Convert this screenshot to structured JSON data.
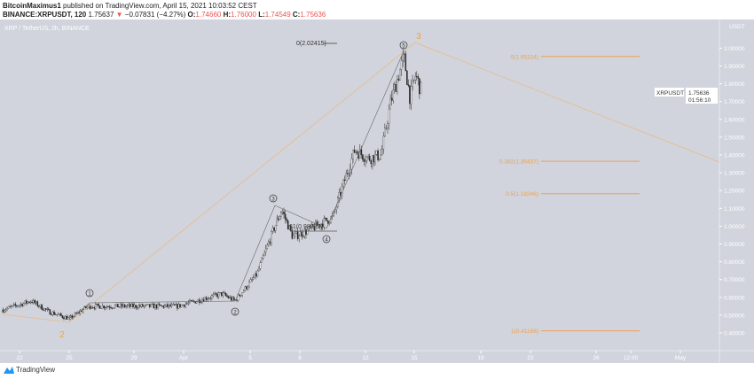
{
  "header": {
    "author": "BitcoinMaximus1",
    "published": "published on TradingView.com, April 15, 2021 10:03:52 CEST",
    "ticker": "BINANCE:XRPUSDT, 120",
    "last": "1.75637",
    "change": "−0.07831 (−4.27%)",
    "o_label": "O:",
    "o": "1.74660",
    "h_label": "H:",
    "h": "1.76000",
    "l_label": "L:",
    "l": "1.74549",
    "c_label": "C:",
    "c": "1.75636"
  },
  "symbol_title": "XRP / TetherUS, 2h, BINANCE",
  "price_axis": {
    "unit": "USDT",
    "labels": [
      "2.00000",
      "1.90000",
      "1.80000",
      "1.70000",
      "1.60000",
      "1.50000",
      "1.40000",
      "1.30000",
      "1.20000",
      "1.10000",
      "1.00000",
      "0.90000",
      "0.80000",
      "0.70000",
      "0.60000",
      "0.50000",
      "0.40000"
    ],
    "last_tag": {
      "symbol": "XRPUSDT",
      "price": "1.75636",
      "countdown": "01:56:10"
    }
  },
  "time_axis": {
    "labels": [
      "22",
      "25",
      "29",
      "Apr",
      "5",
      "8",
      "12",
      "15",
      "19",
      "22",
      "26",
      "12:00",
      "May"
    ]
  },
  "annotations": {
    "fib_top": "0(2.02415)",
    "fib_mid": "61(0.98832)",
    "fib_levels": [
      {
        "label": "0(1.95324)",
        "price": 1.95324
      },
      {
        "label": "0.382(1.36437)",
        "price": 1.36437
      },
      {
        "label": "0.5(1.18246)",
        "price": 1.18246
      },
      {
        "label": "1(0.41168)",
        "price": 0.41168
      }
    ],
    "waves": [
      "1",
      "2",
      "3",
      "4",
      "5"
    ],
    "big_waves": [
      "2",
      "3"
    ]
  },
  "colors": {
    "background": "#d1d4dc",
    "fib": "#f0a050",
    "wave_orange": "#f7a234",
    "down": "#ef5350",
    "candle": "#222"
  },
  "chart_data": {
    "type": "candlestick",
    "ylim": [
      0.35,
      2.1
    ],
    "y_scale": "linear",
    "price_path": [
      [
        "2021-03-21T00:00",
        0.53
      ],
      [
        "2021-03-22T17:00",
        0.58
      ],
      [
        "2021-03-23T18:00",
        0.52
      ],
      [
        "2021-03-25T00:00",
        0.48
      ],
      [
        "2021-03-26T04:00",
        0.55
      ],
      [
        "2021-03-31T13:00",
        0.55
      ],
      [
        "2021-04-03T05:00",
        0.62
      ],
      [
        "2021-04-04T00:00",
        0.58
      ],
      [
        "2021-04-05T08:00",
        0.73
      ],
      [
        "2021-04-06T10:00",
        1.0
      ],
      [
        "2021-04-06T20:00",
        1.09
      ],
      [
        "2021-04-07T12:00",
        0.94
      ],
      [
        "2021-04-08T07:00",
        0.97
      ],
      [
        "2021-04-09T22:00",
        1.05
      ],
      [
        "2021-04-10T17:00",
        1.28
      ],
      [
        "2021-04-11T06:00",
        1.43
      ],
      [
        "2021-04-12T01:00",
        1.38
      ],
      [
        "2021-04-12T20:00",
        1.4
      ],
      [
        "2021-04-13T10:00",
        1.7
      ],
      [
        "2021-04-14T05:00",
        1.95
      ],
      [
        "2021-04-14T14:00",
        1.72
      ],
      [
        "2021-04-14T22:00",
        1.85
      ],
      [
        "2021-04-15T06:00",
        1.76
      ]
    ]
  },
  "footer": {
    "brand": "TradingView"
  }
}
